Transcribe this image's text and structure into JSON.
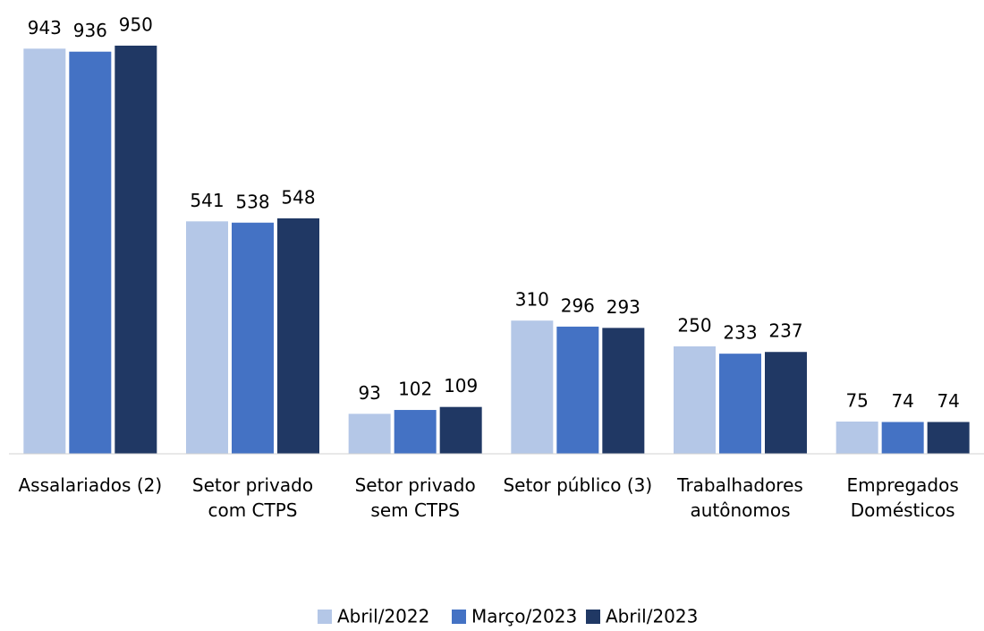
{
  "chart_data": {
    "type": "bar",
    "categories": [
      [
        "Assalariados (2)"
      ],
      [
        "Setor privado",
        "com CTPS"
      ],
      [
        "Setor privado",
        "sem CTPS"
      ],
      [
        "Setor público (3)"
      ],
      [
        "Trabalhadores",
        "autônomos"
      ],
      [
        "Empregados",
        "Domésticos"
      ]
    ],
    "series": [
      {
        "name": "Abril/2022",
        "color": "#b4c7e7",
        "values": [
          943,
          541,
          93,
          310,
          250,
          75
        ]
      },
      {
        "name": "Março/2023",
        "color": "#4472c4",
        "values": [
          936,
          538,
          102,
          296,
          233,
          74
        ]
      },
      {
        "name": "Abril/2023",
        "color": "#203864",
        "values": [
          950,
          548,
          109,
          293,
          237,
          74
        ]
      }
    ],
    "ylim": [
      0,
      1000
    ],
    "legend": "bottom"
  }
}
